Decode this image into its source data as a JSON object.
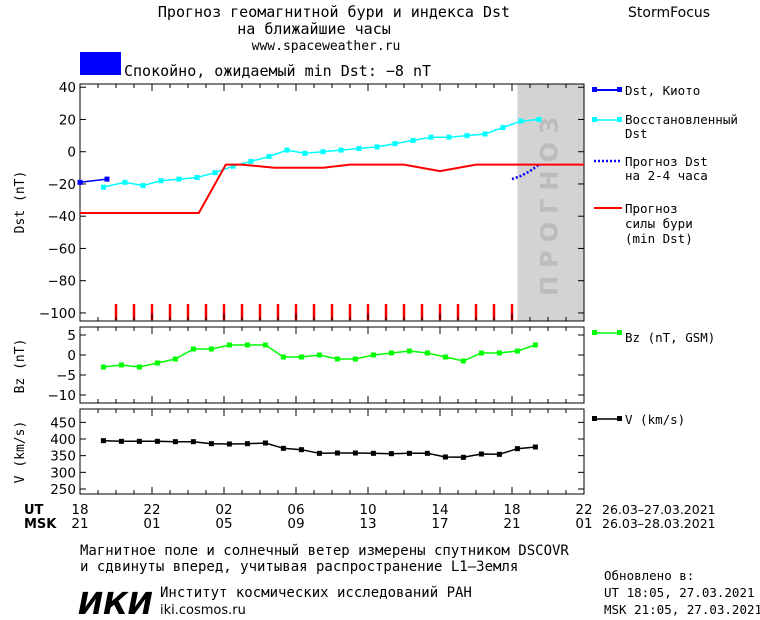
{
  "header": {
    "title_line1": "Прогноз геомагнитной бури и индекса Dst",
    "title_line2": "на ближайшие часы",
    "url": "www.spaceweather.ru",
    "brand": "StormFocus",
    "status_text": "Спокойно, ожидаемый min Dst: −8 nT",
    "status_color": "#0000ff"
  },
  "chart_data": [
    {
      "type": "line",
      "ylabel": "Dst (nT)",
      "ylim": [
        -105,
        42
      ],
      "yticks": [
        40,
        20,
        0,
        -20,
        -40,
        -60,
        -80,
        -100
      ],
      "xlim": [
        18,
        46
      ],
      "forecast_band": {
        "x_start": 42.3,
        "x_end": 46,
        "label": "ПРОГНОЗ",
        "color": "#d3d3d3"
      },
      "series": [
        {
          "name": "Dst, Киото",
          "color": "#0000ff",
          "style": "line-square",
          "x": [
            18.0,
            19.5
          ],
          "y": [
            -19,
            -17
          ]
        },
        {
          "name": "Восстановленный Dst",
          "color": "#00ffff",
          "style": "line-square",
          "x": [
            19.3,
            20.5,
            21.5,
            22.5,
            23.5,
            24.5,
            25.5,
            26.5,
            27.5,
            28.5,
            29.5,
            30.5,
            31.5,
            32.5,
            33.5,
            34.5,
            35.5,
            36.5,
            37.5,
            38.5,
            39.5,
            40.5,
            41.5,
            42.5,
            43.5
          ],
          "y": [
            -22,
            -19,
            -21,
            -18,
            -17,
            -16,
            -13,
            -9,
            -6,
            -3,
            1,
            -1,
            0,
            1,
            2,
            3,
            5,
            7,
            9,
            9,
            10,
            11,
            15,
            19,
            20
          ]
        },
        {
          "name": "Прогноз Dst на 2-4 часа",
          "color": "#0000ff",
          "style": "dotted",
          "x": [
            42.0,
            42.5,
            43.0,
            43.5
          ],
          "y": [
            -17,
            -15,
            -12,
            -8
          ]
        },
        {
          "name": "Прогноз силы бури (min Dst)",
          "color": "#ff0000",
          "style": "line",
          "x": [
            18,
            24.6,
            26.1,
            27,
            28.8,
            31.5,
            33.0,
            36.0,
            38.0,
            40.0,
            40.5,
            44.0,
            46.0
          ],
          "y": [
            -38,
            -38,
            -8,
            -8,
            -10,
            -10,
            -8,
            -8,
            -12,
            -8,
            -8,
            -8,
            -8
          ]
        }
      ],
      "tick_marks": {
        "color": "#ff0000",
        "x": [
          20.0,
          21.0,
          22.0,
          23.0,
          24.0,
          25.0,
          26.0,
          27.0,
          28.0,
          29.0,
          30.0,
          31.0,
          32.0,
          33.0,
          34.0,
          35.0,
          36.0,
          37.0,
          38.0,
          39.0,
          40.0,
          41.0,
          42.0
        ]
      }
    },
    {
      "type": "line",
      "ylabel": "Bz (nT)",
      "ylim": [
        -12,
        7
      ],
      "yticks": [
        5,
        0,
        -5,
        -10
      ],
      "xlim": [
        18,
        46
      ],
      "series": [
        {
          "name": "Bz (nT, GSM)",
          "color": "#00ff00",
          "style": "line-square",
          "x": [
            19.3,
            20.3,
            21.3,
            22.3,
            23.3,
            24.3,
            25.3,
            26.3,
            27.3,
            28.3,
            29.3,
            30.3,
            31.3,
            32.3,
            33.3,
            34.3,
            35.3,
            36.3,
            37.3,
            38.3,
            39.3,
            40.3,
            41.3,
            42.3,
            43.3
          ],
          "y": [
            -3,
            -2.5,
            -3,
            -2,
            -1,
            1.5,
            1.5,
            2.5,
            2.5,
            2.5,
            -0.5,
            -0.5,
            0,
            -1,
            -1,
            0,
            0.5,
            1,
            0.5,
            -0.5,
            -1.5,
            0.5,
            0.5,
            1,
            2.5
          ]
        }
      ]
    },
    {
      "type": "line",
      "ylabel": "V (km/s)",
      "ylim": [
        235,
        490
      ],
      "yticks": [
        450,
        400,
        350,
        300,
        250
      ],
      "xlim": [
        18,
        46
      ],
      "series": [
        {
          "name": "V (km/s)",
          "color": "#000000",
          "style": "line-square",
          "x": [
            19.3,
            20.3,
            21.3,
            22.3,
            23.3,
            24.3,
            25.3,
            26.3,
            27.3,
            28.3,
            29.3,
            30.3,
            31.3,
            32.3,
            33.3,
            34.3,
            35.3,
            36.3,
            37.3,
            38.3,
            39.3,
            40.3,
            41.3,
            42.3,
            43.3
          ],
          "y": [
            395,
            393,
            393,
            393,
            392,
            392,
            386,
            385,
            386,
            388,
            372,
            368,
            357,
            358,
            358,
            357,
            356,
            357,
            357,
            346,
            345,
            355,
            354,
            371,
            376
          ]
        }
      ]
    }
  ],
  "xaxis": {
    "ut_label": "UT",
    "msk_label": "MSK",
    "ut_ticks": [
      "18",
      "22",
      "02",
      "06",
      "10",
      "14",
      "18",
      "22"
    ],
    "msk_ticks": [
      "21",
      "01",
      "05",
      "09",
      "13",
      "17",
      "21",
      "01"
    ],
    "ut_range": "26.03–27.03.2021",
    "msk_range": "26.03–28.03.2021"
  },
  "footer": {
    "note_line1": "Магнитное поле и солнечный ветер измерены спутником DSCOVR",
    "note_line2": "и сдвинуты вперед, учитывая распространение L1–Земля",
    "logo": "ИКИ",
    "institute": "Институт космических исследований РАН",
    "institute_url": "iki.cosmos.ru",
    "updated_label": "Обновлено в:",
    "updated_ut": "UT  18:05, 27.03.2021",
    "updated_msk": "MSK 21:05, 27.03.2021"
  },
  "legend": {
    "dst_kyoto": "Dst, Киото",
    "restored_line1": "Восстановленный",
    "restored_line2": "Dst",
    "forecast_line1": "Прогноз Dst",
    "forecast_line2": "на 2-4 часа",
    "storm_line1": "Прогноз",
    "storm_line2": "силы бури",
    "storm_line3": "(min Dst)",
    "bz": "Bz (nT, GSM)",
    "v": "V (km/s)"
  }
}
